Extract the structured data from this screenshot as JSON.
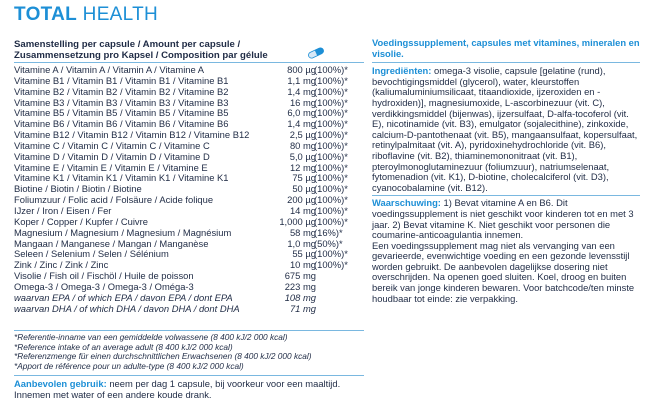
{
  "header": {
    "title_bold": "TOTAL",
    "title_rest": "HEALTH"
  },
  "table": {
    "header": [
      "Samenstelling per capsule / Amount per capsule /",
      "Zusammensetzung pro Kapsel / Composition par gélule"
    ],
    "rows": [
      [
        "Vitamine A / Vitamin A / Vitamin A / Vitamine A",
        "800 µg",
        "(100%)*"
      ],
      [
        "Vitamine B1 / Vitamin B1 / Vitamin B1 / Vitamine B1",
        "1,1 mg",
        "(100%)*"
      ],
      [
        "Vitamine B2 / Vitamin B2 / Vitamin B2 / Vitamine B2",
        "1,4 mg",
        "(100%)*"
      ],
      [
        "Vitamine B3 / Vitamin B3 / Vitamin B3 / Vitamine B3",
        "16 mg",
        "(100%)*"
      ],
      [
        "Vitamine B5 / Vitamin B5 / Vitamin B5 / Vitamine B5",
        "6,0 mg",
        "(100%)*"
      ],
      [
        "Vitamine B6 / Vitamin B6 / Vitamin B6 / Vitamine B6",
        "1,4 mg",
        "(100%)*"
      ],
      [
        "Vitamine B12 / Vitamin B12 / Vitamin B12 / Vitamine B12",
        "2,5 µg",
        "(100%)*"
      ],
      [
        "Vitamine C / Vitamin C / Vitamin C / Vitamine C",
        "80 mg",
        "(100%)*"
      ],
      [
        "Vitamine D / Vitamin D / Vitamin D / Vitamine D",
        "5,0 µg",
        "(100%)*"
      ],
      [
        "Vitamine E / Vitamin E / Vitamin E / Vitamine E",
        "12 mg",
        "(100%)*"
      ],
      [
        "Vitamine K1 / Vitamin K1 / Vitamin K1 / Vitamine K1",
        "75 µg",
        "(100%)*"
      ],
      [
        "Biotine / Biotin / Biotin / Biotine",
        "50 µg",
        "(100%)*"
      ],
      [
        "Foliumzuur / Folic acid / Folsäure / Acide folique",
        "200 µg",
        "(100%)*"
      ],
      [
        "IJzer / Iron / Eisen / Fer",
        "14 mg",
        "(100%)*"
      ],
      [
        "Koper / Copper / Kupfer / Cuivre",
        "1,000 µg",
        "(100%)*"
      ],
      [
        "Magnesium / Magnesium / Magnesium / Magnésium",
        "58 mg",
        "(16%)*"
      ],
      [
        "Mangaan / Manganese / Mangan / Manganèse",
        "1,0 mg",
        "(50%)*"
      ],
      [
        "Seleen / Selenium / Selen / Sélénium",
        "55 µg",
        "(100%)*"
      ],
      [
        "Zink / Zinc / Zink / Zinc",
        "10 mg",
        "(100%)*"
      ],
      [
        "Visolie / Fish oil / Fischöl / Huile de poisson",
        "675 mg"
      ],
      [
        "Omega-3 / Omega-3 / Omega-3 / Oméga-3",
        "223 mg"
      ],
      [
        "waarvan EPA / of which EPA / davon EPA / dont EPA",
        "108 mg"
      ],
      [
        "waarvan DHA / of which DHA / davon DHA / dont DHA",
        "71 mg"
      ]
    ]
  },
  "notes": [
    "*Referentie-inname van een gemiddelde volwassene (8 400 kJ/2 000 kcal)",
    "*Reference intake of an average adult (8 400 kJ/2 000 kcal)",
    "*Referenzmenge für einen durchschnittlichen Erwachsenen (8 400 kJ/2 000 kcal)",
    "*Apport de référence pour un adulte-type (8 400 kJ/2 000 kcal)"
  ],
  "usage": {
    "label": "Aanbevolen gebruik:",
    "text": "neem per dag 1 capsule, bij voorkeur voor een maaltijd. Innemen met water of een andere koude drank."
  },
  "right": {
    "heading": "Voedingssupplement, capsules met vitamines, mineralen en visolie.",
    "ingredients_label": "Ingrediënten:",
    "ingredients": "omega-3 visolie, capsule [gelatine (rund), bevochtigingsmiddel (glycerol), water, kleurstoffen (kaliumaluminiumsilicaat, titaandioxide, ijzeroxiden en -hydroxiden)], magnesiumoxide, L-ascorbinezuur (vit. C), verdikkingsmiddel (bijenwas), ijzersulfaat, D-alfa-tocoferol (vit. E), nicotinamide (vit. B3), emulgator (sojalecithine), zinkoxide, calcium-D-pantothenaat (vit. B5), mangaansulfaat, kopersulfaat, retinylpalmitaat (vit. A), pyridoxinehydrochloride (vit. B6), riboflavine (vit. B2), thiaminemononitraat (vit. B1), pteroylmonoglutaminezuur (foliumzuur), natriumselenaat, fytomenadion (vit. K1), D-biotine, cholecalciferol (vit. D3), cyanocobalamine (vit. B12).",
    "warning_label": "Waarschuwing:",
    "warning": "1) Bevat vitamine A en B6. Dit voedingssupplement is niet geschikt voor kinderen tot en met 3 jaar. 2) Bevat vitamine K. Niet geschikt voor personen die coumarine-anticoagulantia innemen.",
    "advice": "Een voedingssupplement mag niet als vervanging van een gevarieerde, evenwichtige voeding en een gezonde levensstijl worden gebruikt. De aanbevolen dagelijkse dosering niet overschrijden. Na openen goed sluiten. Koel, droog en buiten bereik van jonge kinderen bewaren. Voor batchcode/ten minste houdbaar tot einde: zie verpakking."
  }
}
